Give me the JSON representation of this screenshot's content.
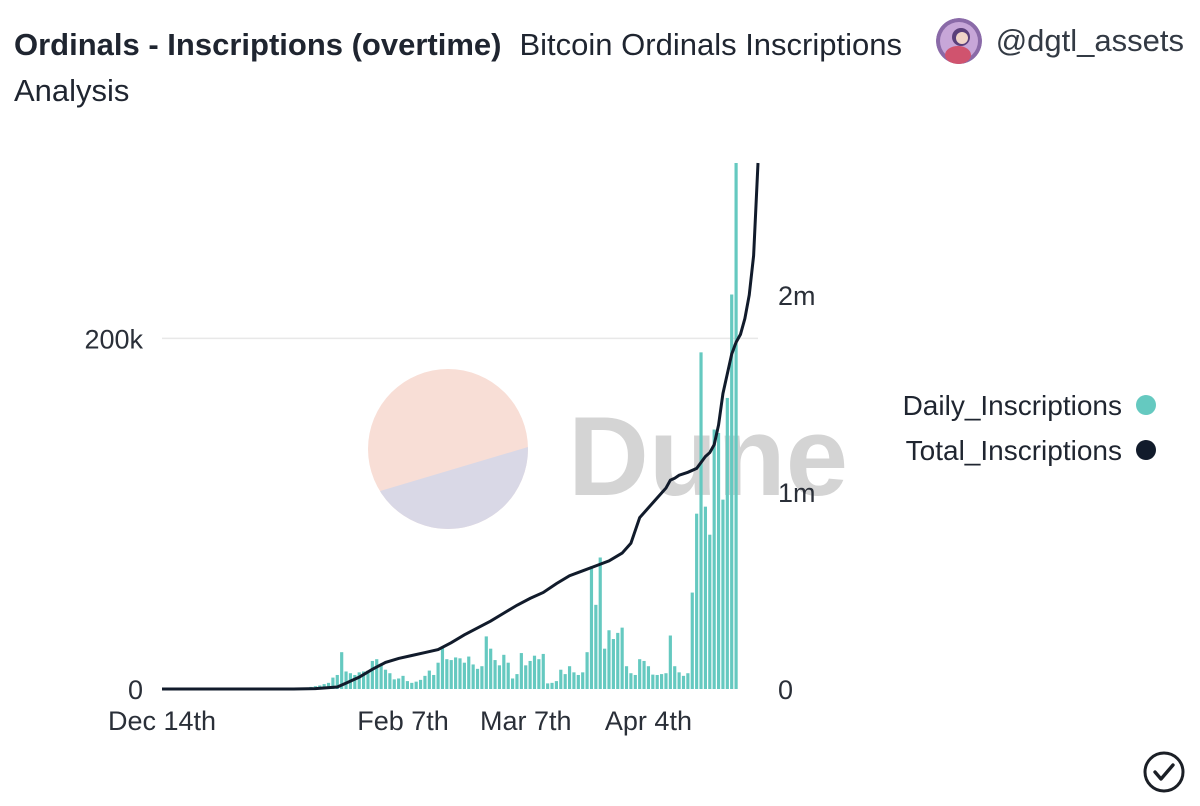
{
  "header": {
    "title": "Ordinals - Inscriptions (overtime)",
    "subtitle": "Bitcoin Ordinals Inscriptions Analysis"
  },
  "author": {
    "handle": "@dgtl_assets",
    "icon": "avatar-icon"
  },
  "watermark": {
    "text": "Dune",
    "colors": [
      "#f8ded6",
      "#d9d8e6",
      "#d4d4d4"
    ]
  },
  "footer": {
    "icon": "check-circle-icon"
  },
  "chart_data": {
    "type": "bar+line",
    "x_tick_labels": [
      "Dec 14th",
      "Feb 7th",
      "Mar 7th",
      "Apr 4th"
    ],
    "x_tick_day_index": [
      0,
      55,
      83,
      111
    ],
    "x_range_days": [
      0,
      136
    ],
    "left_axis": {
      "ticks": [
        0,
        200000
      ],
      "tick_labels": [
        "0",
        "200k"
      ],
      "range": [
        0,
        300000
      ]
    },
    "right_axis": {
      "ticks": [
        0,
        1000000,
        2000000
      ],
      "tick_labels": [
        "0",
        "1m",
        "2m"
      ],
      "range": [
        0,
        2670000
      ]
    },
    "legend": {
      "position": "right",
      "entries": [
        "Daily_Inscriptions",
        "Total_Inscriptions"
      ]
    },
    "series": [
      {
        "name": "Daily_Inscriptions",
        "type": "bar",
        "axis": "left",
        "color": "#65c9c0",
        "start_day": 32,
        "values": [
          400,
          800,
          1200,
          1600,
          2000,
          2800,
          3500,
          6500,
          8000,
          21000,
          10000,
          9000,
          8000,
          9500,
          10000,
          10500,
          16000,
          17000,
          14000,
          11000,
          9000,
          5500,
          6000,
          7500,
          4500,
          3500,
          4200,
          5200,
          7500,
          10500,
          8000,
          15000,
          24000,
          17000,
          16500,
          18000,
          17500,
          15000,
          18500,
          14000,
          11500,
          13000,
          30000,
          23000,
          16500,
          13500,
          19500,
          15000,
          6000,
          8500,
          20500,
          13500,
          16000,
          19000,
          17000,
          20000,
          3200,
          3500,
          4500,
          11000,
          8500,
          13000,
          9500,
          8000,
          9500,
          21000,
          70000,
          48000,
          75000,
          23000,
          33500,
          28500,
          32000,
          35000,
          13000,
          9000,
          8000,
          17000,
          16000,
          13000,
          8200,
          8000,
          8500,
          9000,
          30500,
          13000,
          9500,
          7500,
          9000,
          55000,
          100000,
          192000,
          104000,
          88000,
          148000,
          146000,
          108000,
          166000,
          225000,
          300000
        ]
      },
      {
        "name": "Total_Inscriptions",
        "type": "line",
        "axis": "right",
        "color": "#111b2b",
        "points": [
          [
            0,
            0
          ],
          [
            30,
            0
          ],
          [
            35,
            2000
          ],
          [
            40,
            10000
          ],
          [
            42,
            30000
          ],
          [
            45,
            60000
          ],
          [
            48,
            100000
          ],
          [
            51,
            135000
          ],
          [
            54,
            155000
          ],
          [
            57,
            170000
          ],
          [
            60,
            185000
          ],
          [
            63,
            200000
          ],
          [
            66,
            235000
          ],
          [
            69,
            275000
          ],
          [
            72,
            310000
          ],
          [
            75,
            345000
          ],
          [
            78,
            385000
          ],
          [
            81,
            425000
          ],
          [
            84,
            460000
          ],
          [
            87,
            490000
          ],
          [
            90,
            535000
          ],
          [
            93,
            575000
          ],
          [
            96,
            600000
          ],
          [
            99,
            625000
          ],
          [
            102,
            650000
          ],
          [
            105,
            690000
          ],
          [
            107,
            740000
          ],
          [
            109,
            870000
          ],
          [
            111,
            920000
          ],
          [
            113,
            970000
          ],
          [
            115,
            1020000
          ],
          [
            116,
            1060000
          ],
          [
            117,
            1070000
          ],
          [
            118,
            1085000
          ],
          [
            120,
            1100000
          ],
          [
            122,
            1120000
          ],
          [
            124,
            1180000
          ],
          [
            125,
            1200000
          ],
          [
            126,
            1240000
          ],
          [
            127,
            1340000
          ],
          [
            128,
            1500000
          ],
          [
            129,
            1600000
          ],
          [
            130,
            1700000
          ],
          [
            131,
            1760000
          ],
          [
            132,
            1800000
          ],
          [
            133,
            1880000
          ],
          [
            134,
            2000000
          ],
          [
            135,
            2200000
          ],
          [
            136,
            2670000
          ]
        ]
      }
    ]
  }
}
